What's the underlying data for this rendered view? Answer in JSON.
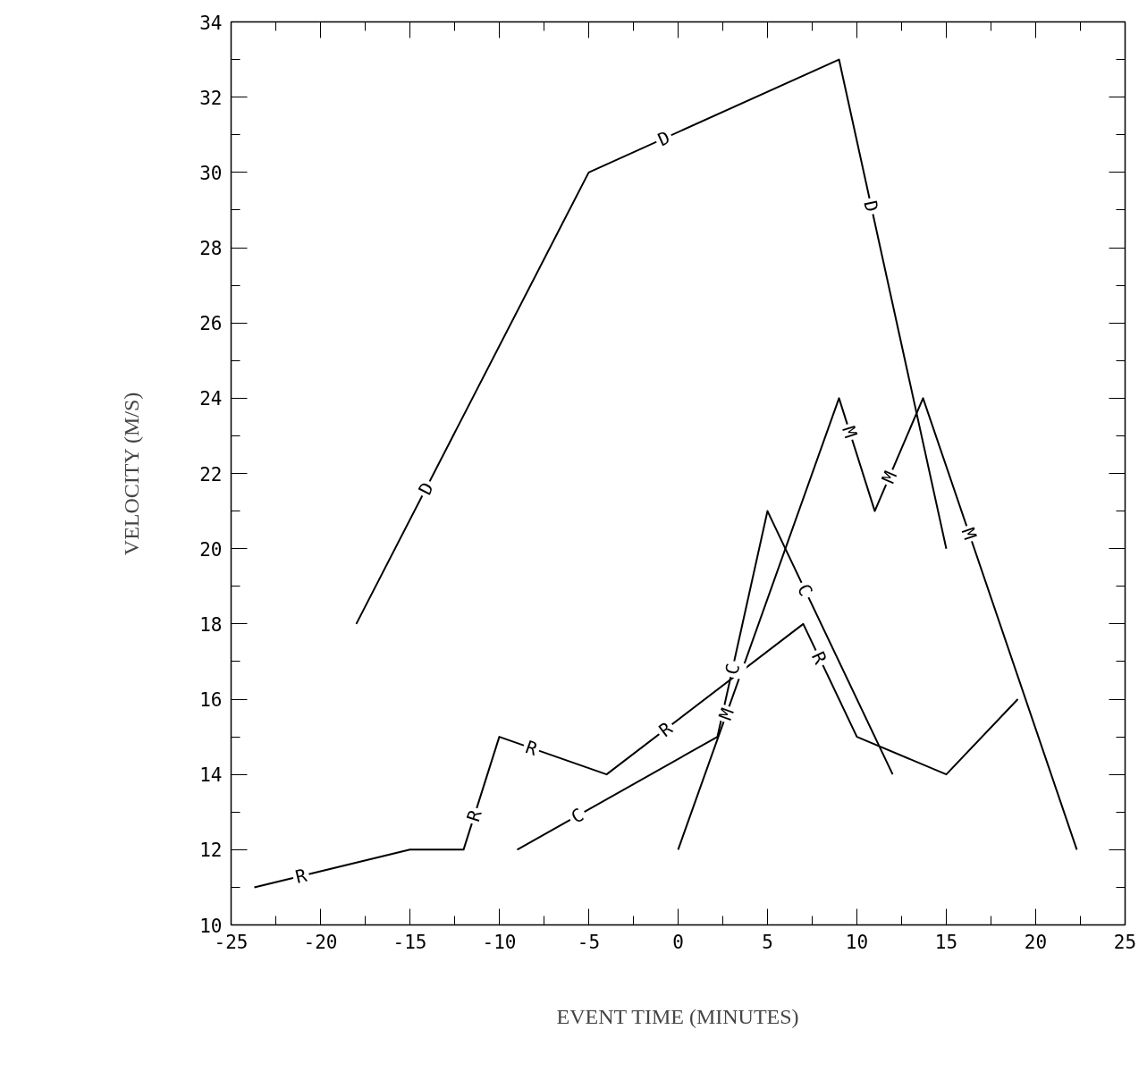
{
  "chart_data": {
    "type": "line",
    "xlabel": "EVENT TIME (MINUTES)",
    "ylabel": "VELOCITY (M/S)",
    "xlim": [
      -25,
      25
    ],
    "ylim": [
      10,
      34
    ],
    "xticks": [
      -25,
      {
        "value": -22.5,
        "label": null
      },
      -20,
      {
        "value": -17.5,
        "label": null
      },
      -15,
      {
        "value": -12.5,
        "label": null
      },
      -10,
      {
        "value": -7.5,
        "label": null
      },
      -5,
      {
        "value": -2.5,
        "label": null
      },
      0,
      {
        "value": 2.5,
        "label": null
      },
      5,
      {
        "value": 7.5,
        "label": null
      },
      10,
      {
        "value": 12.5,
        "label": null
      },
      15,
      {
        "value": 17.5,
        "label": null
      },
      20,
      {
        "value": 22.5,
        "label": null
      },
      25
    ],
    "yticks": [
      10,
      {
        "value": 11,
        "label": null
      },
      12,
      {
        "value": 13,
        "label": null
      },
      14,
      {
        "value": 15,
        "label": null
      },
      16,
      {
        "value": 17,
        "label": null
      },
      18,
      {
        "value": 19,
        "label": null
      },
      20,
      {
        "value": 21,
        "label": null
      },
      22,
      {
        "value": 23,
        "label": null
      },
      24,
      {
        "value": 25,
        "label": null
      },
      26,
      {
        "value": 27,
        "label": null
      },
      28,
      {
        "value": 29,
        "label": null
      },
      30,
      {
        "value": 31,
        "label": null
      },
      32,
      {
        "value": 33,
        "label": null
      },
      34
    ],
    "grid": false,
    "legend": false,
    "marker": "none",
    "line_style": "solid",
    "series": [
      {
        "name": "D",
        "color": "#000000",
        "x": [
          -18,
          -5,
          9,
          15
        ],
        "values": [
          18,
          30,
          33,
          20
        ]
      },
      {
        "name": "R",
        "color": "#000000",
        "x": [
          -23.7,
          -15,
          -12,
          -10,
          -4,
          7,
          10,
          15,
          19
        ],
        "values": [
          11,
          12,
          12,
          15,
          14,
          18,
          15,
          14,
          16
        ]
      },
      {
        "name": "C",
        "color": "#000000",
        "x": [
          -9,
          2.2,
          5,
          12
        ],
        "values": [
          12,
          15,
          21,
          14
        ]
      },
      {
        "name": "M",
        "color": "#000000",
        "x": [
          0,
          9,
          11,
          13.7,
          22.3
        ],
        "values": [
          12,
          24,
          21,
          24,
          12
        ]
      }
    ]
  }
}
